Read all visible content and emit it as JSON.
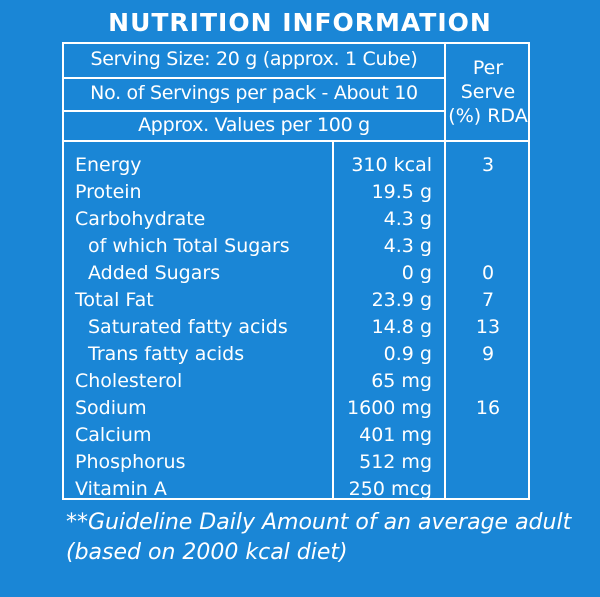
{
  "title": "NUTRITION INFORMATION",
  "header": {
    "serving_size": "Serving Size: 20 g (approx. 1 Cube)",
    "servings_per_pack": "No. of Servings per pack - About 10",
    "values_per": "Approx. Values per 100 g",
    "rda_line1": "Per",
    "rda_line2": "Serve",
    "rda_line3": "(%) RDA"
  },
  "nutrients": [
    {
      "name": "Energy",
      "value": "310 kcal",
      "rda": "3",
      "indent": false
    },
    {
      "name": "Protein",
      "value": "19.5 g",
      "rda": "",
      "indent": false
    },
    {
      "name": "Carbohydrate",
      "value": "4.3 g",
      "rda": "",
      "indent": false
    },
    {
      "name": "of which Total Sugars",
      "value": "4.3 g",
      "rda": "",
      "indent": true
    },
    {
      "name": "Added Sugars",
      "value": "0 g",
      "rda": "0",
      "indent": true
    },
    {
      "name": "Total Fat",
      "value": "23.9 g",
      "rda": "7",
      "indent": false
    },
    {
      "name": "Saturated fatty acids",
      "value": "14.8 g",
      "rda": "13",
      "indent": true
    },
    {
      "name": "Trans fatty acids",
      "value": "0.9 g",
      "rda": "9",
      "indent": true
    },
    {
      "name": "Cholesterol",
      "value": "65 mg",
      "rda": "",
      "indent": false
    },
    {
      "name": "Sodium",
      "value": "1600 mg",
      "rda": "16",
      "indent": false
    },
    {
      "name": "Calcium",
      "value": "401 mg",
      "rda": "",
      "indent": false
    },
    {
      "name": "Phosphorus",
      "value": "512 mg",
      "rda": "",
      "indent": false
    },
    {
      "name": "Vitamin A",
      "value": "250 mcg",
      "rda": "",
      "indent": false
    }
  ],
  "footnote_line1": "**Guideline Daily Amount of an average adult",
  "footnote_line2": "(based on 2000 kcal diet)",
  "colors": {
    "background": "#1a86d6",
    "text": "#ffffff"
  }
}
